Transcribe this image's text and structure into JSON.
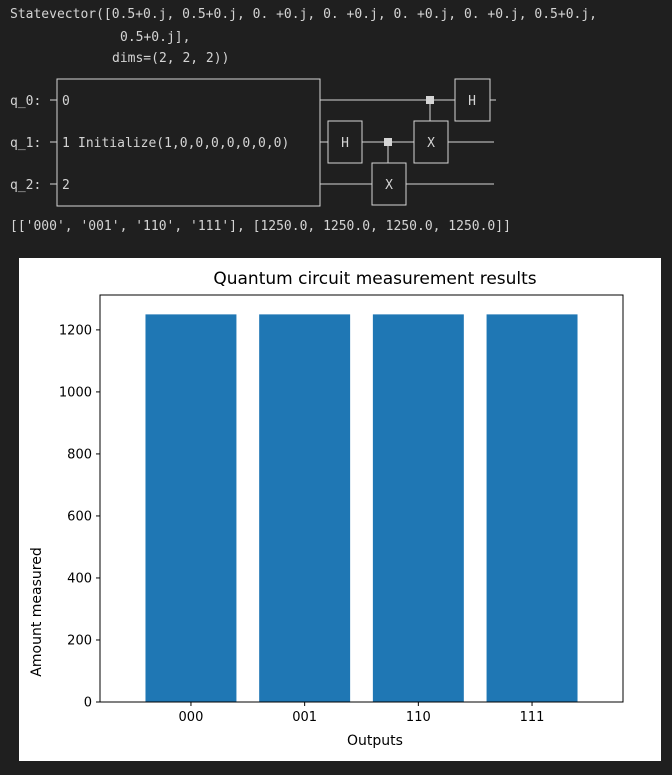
{
  "output": {
    "statevector_line1": "Statevector([0.5+0.j, 0.5+0.j, 0. +0.j, 0. +0.j, 0. +0.j, 0. +0.j, 0.5+0.j,",
    "statevector_line2": "0.5+0.j],",
    "statevector_line3": "dims=(2, 2, 2))",
    "counts_line": "[['000', '001', '110', '111'], [1250.0, 1250.0, 1250.0, 1250.0]]"
  },
  "circuit": {
    "qubits": [
      "q_0:",
      "q_1:",
      "q_2:"
    ],
    "init_indices": [
      "0",
      "1",
      "2"
    ],
    "init_label": "Initialize(1,0,0,0,0,0,0,0)",
    "gates": {
      "h_q1": "H",
      "x_q2": "X",
      "x_q1": "X",
      "h_q0": "H"
    }
  },
  "chart_data": {
    "type": "bar",
    "title": "Quantum circuit measurement results",
    "xlabel": "Outputs",
    "ylabel": "Amount measured",
    "categories": [
      "000",
      "001",
      "110",
      "111"
    ],
    "values": [
      1250,
      1250,
      1250,
      1250
    ],
    "ylim": [
      0,
      1312.5
    ],
    "yticks": [
      0,
      200,
      400,
      600,
      800,
      1000,
      1200
    ],
    "color": "#1f77b4",
    "grid": false
  }
}
